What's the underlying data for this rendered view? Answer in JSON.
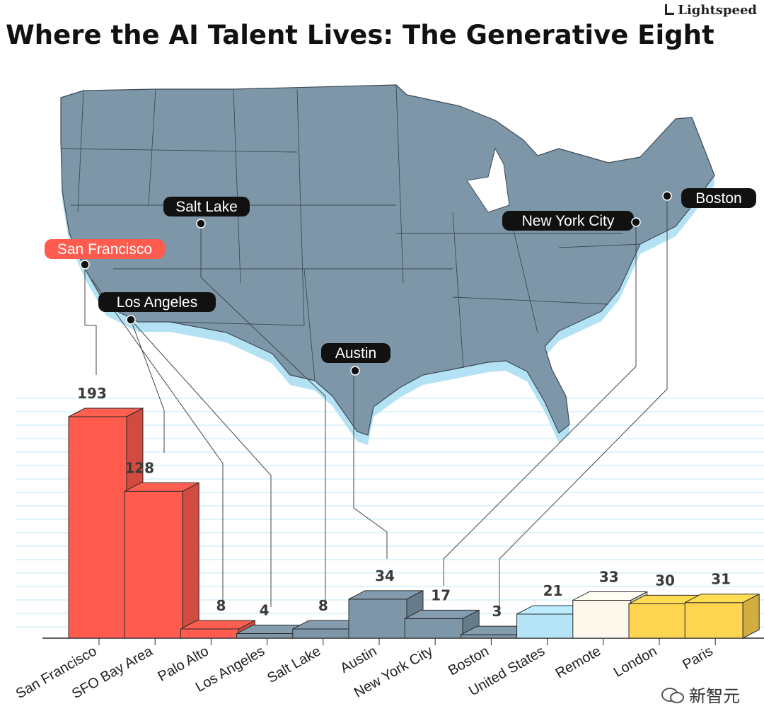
{
  "title": "Where the AI Talent Lives: The Generative Eight",
  "brand": "Lightspeed",
  "watermark": "新智元",
  "colors": {
    "red": "#ff5b4e",
    "slate": "#7e97a8",
    "light_blue": "#b5e4f7",
    "cream": "#fdf7ec",
    "yellow": "#ffd44f",
    "map": "#7e97a8",
    "map_shadow": "#b3e2f4"
  },
  "chart_data": {
    "type": "bar",
    "title": "Where the AI Talent Lives: The Generative Eight",
    "xlabel": "",
    "ylabel": "",
    "categories": [
      "San Francisco",
      "SFO Bay Area",
      "Palo Alto",
      "Los Angeles",
      "Salt Lake",
      "Austin",
      "New York City",
      "Boston",
      "United States",
      "Remote",
      "London",
      "Paris"
    ],
    "values": [
      193,
      128,
      8,
      4,
      8,
      34,
      17,
      3,
      21,
      33,
      30,
      31
    ],
    "value_labels": [
      "193",
      "128",
      "8",
      "4",
      "8",
      "34",
      "17",
      "3",
      "21",
      "33",
      "30",
      "31"
    ],
    "ylim": [
      0,
      200
    ],
    "grid": true,
    "map_labels": [
      {
        "name": "San Francisco",
        "highlight": true
      },
      {
        "name": "Salt Lake",
        "highlight": false
      },
      {
        "name": "Los Angeles",
        "highlight": false
      },
      {
        "name": "Austin",
        "highlight": false
      },
      {
        "name": "New York City",
        "highlight": false
      },
      {
        "name": "Boston",
        "highlight": false
      }
    ]
  }
}
